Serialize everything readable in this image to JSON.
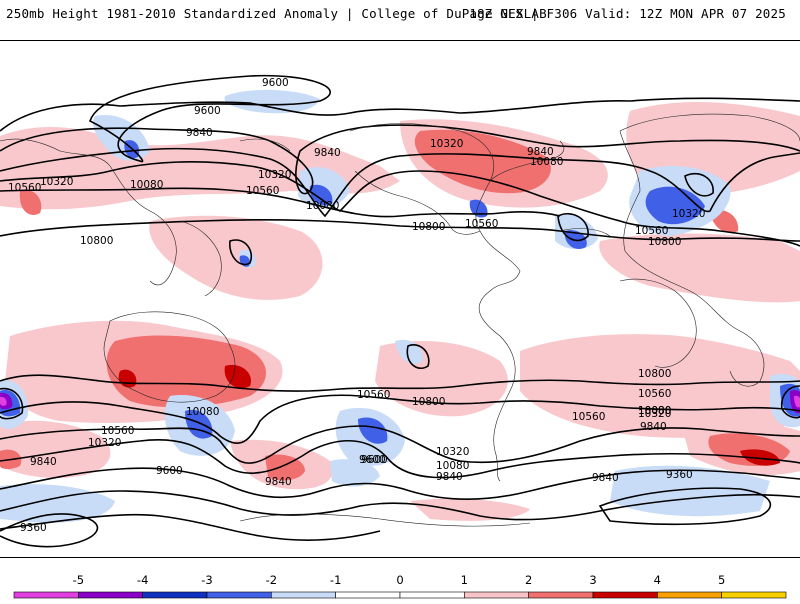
{
  "header": {
    "title_left": "250mb Height 1981-2010 Standardized Anomaly | College of DuPage NEXLAB",
    "title_right": "18Z GFS | F306 Valid: 12Z MON APR 07 2025"
  },
  "map": {
    "contour_labels": [
      "9600",
      "9600",
      "9840",
      "9840",
      "10080",
      "10320",
      "10560",
      "10560",
      "10320",
      "10080",
      "10800",
      "10800",
      "10560",
      "10320",
      "9840",
      "10080",
      "10560",
      "10800",
      "10800",
      "10320",
      "10560",
      "10080",
      "10560",
      "9840",
      "10320",
      "9600",
      "9840",
      "9360",
      "10560",
      "10320",
      "9600",
      "10080",
      "9840",
      "9840",
      "10800",
      "10560",
      "10320",
      "10080",
      "9840",
      "9600",
      "9360",
      "10080"
    ]
  },
  "colorbar": {
    "ticks": [
      "-5",
      "-4",
      "-3",
      "-2",
      "-1",
      "0",
      "1",
      "2",
      "3",
      "4",
      "5"
    ],
    "colors": [
      "#e040e0",
      "#8a00c8",
      "#1030c0",
      "#4060e8",
      "#c8dcf8",
      "#ffffff",
      "#ffffff",
      "#f8c4c8",
      "#f07070",
      "#c80000",
      "#f8a000",
      "#f8d000"
    ]
  }
}
